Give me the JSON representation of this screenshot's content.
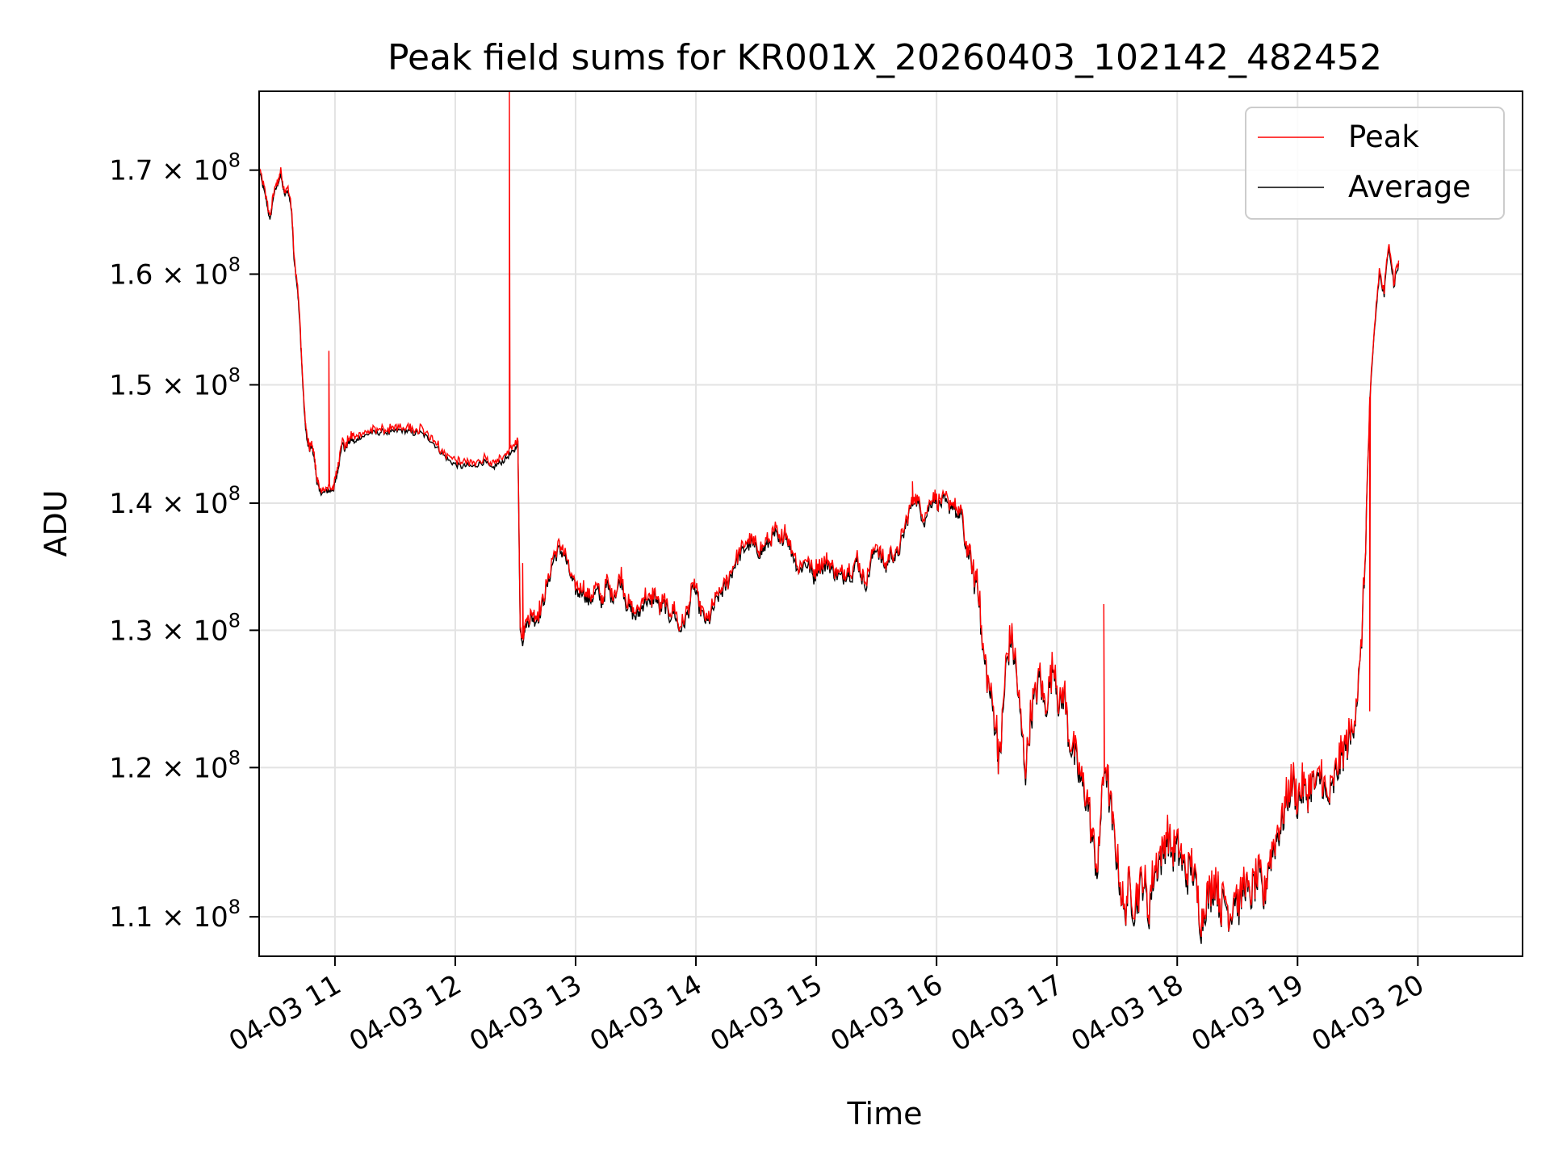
{
  "chart_data": {
    "type": "line",
    "title": "Peak field sums for KR001X_20260403_102142_482452",
    "xlabel": "Time",
    "ylabel": "ADU",
    "x_range_hours": [
      10.37,
      20.87
    ],
    "y_range": [
      107500000,
      178000000
    ],
    "y_scale": "log",
    "grid": true,
    "legend_position": "upper right",
    "x_ticks": [
      {
        "hour": 11,
        "label": "04-03 11"
      },
      {
        "hour": 12,
        "label": "04-03 12"
      },
      {
        "hour": 13,
        "label": "04-03 13"
      },
      {
        "hour": 14,
        "label": "04-03 14"
      },
      {
        "hour": 15,
        "label": "04-03 15"
      },
      {
        "hour": 16,
        "label": "04-03 16"
      },
      {
        "hour": 17,
        "label": "04-03 17"
      },
      {
        "hour": 18,
        "label": "04-03 18"
      },
      {
        "hour": 19,
        "label": "04-03 19"
      },
      {
        "hour": 20,
        "label": "04-03 20"
      }
    ],
    "y_ticks": [
      {
        "value": 110000000,
        "mantissa": "1.1"
      },
      {
        "value": 120000000,
        "mantissa": "1.2"
      },
      {
        "value": 130000000,
        "mantissa": "1.3"
      },
      {
        "value": 140000000,
        "mantissa": "1.4"
      },
      {
        "value": 150000000,
        "mantissa": "1.5"
      },
      {
        "value": 160000000,
        "mantissa": "1.6"
      },
      {
        "value": 170000000,
        "mantissa": "1.7"
      }
    ],
    "y_tick_suffix": "× 10",
    "y_tick_exponent": "8",
    "series": [
      {
        "name": "Average",
        "color": "#000000",
        "points": [
          [
            10.37,
            170.0
          ],
          [
            10.4,
            168.5
          ],
          [
            10.43,
            167.0
          ],
          [
            10.46,
            165.0
          ],
          [
            10.49,
            167.5
          ],
          [
            10.52,
            168.5
          ],
          [
            10.55,
            169.5
          ],
          [
            10.58,
            167.5
          ],
          [
            10.61,
            168.0
          ],
          [
            10.64,
            166.0
          ],
          [
            10.66,
            161.5
          ],
          [
            10.69,
            158.5
          ],
          [
            10.71,
            155.0
          ],
          [
            10.73,
            150.5
          ],
          [
            10.75,
            147.0
          ],
          [
            10.77,
            145.0
          ],
          [
            10.79,
            144.4
          ],
          [
            10.81,
            144.7
          ],
          [
            10.83,
            143.5
          ],
          [
            10.85,
            141.8
          ],
          [
            10.87,
            141.0
          ],
          [
            10.9,
            140.8
          ],
          [
            10.93,
            141.0
          ],
          [
            10.96,
            141.0
          ],
          [
            10.99,
            141.2
          ],
          [
            11.01,
            142.0
          ],
          [
            11.03,
            143.0
          ],
          [
            11.06,
            145.2
          ],
          [
            11.08,
            144.4
          ],
          [
            11.11,
            145.0
          ],
          [
            11.14,
            145.3
          ],
          [
            11.17,
            145.0
          ],
          [
            11.2,
            145.5
          ],
          [
            11.25,
            145.6
          ],
          [
            11.3,
            145.9
          ],
          [
            11.35,
            145.8
          ],
          [
            11.4,
            146.0
          ],
          [
            11.45,
            145.8
          ],
          [
            11.5,
            146.0
          ],
          [
            11.55,
            146.1
          ],
          [
            11.6,
            146.0
          ],
          [
            11.65,
            145.8
          ],
          [
            11.7,
            145.9
          ],
          [
            11.75,
            145.6
          ],
          [
            11.8,
            145.2
          ],
          [
            11.85,
            144.6
          ],
          [
            11.9,
            144.0
          ],
          [
            11.95,
            143.5
          ],
          [
            12.0,
            143.2
          ],
          [
            12.05,
            143.0
          ],
          [
            12.1,
            143.1
          ],
          [
            12.15,
            143.0
          ],
          [
            12.2,
            143.3
          ],
          [
            12.25,
            143.4
          ],
          [
            12.3,
            142.8
          ],
          [
            12.35,
            143.2
          ],
          [
            12.4,
            143.5
          ],
          [
            12.45,
            144.0
          ],
          [
            12.49,
            144.3
          ],
          [
            12.52,
            145.2
          ],
          [
            12.54,
            130.0
          ],
          [
            12.56,
            129.0
          ],
          [
            12.58,
            130.2
          ],
          [
            12.61,
            130.8
          ],
          [
            12.64,
            131.0
          ],
          [
            12.67,
            130.8
          ],
          [
            12.7,
            131.2
          ],
          [
            12.74,
            132.5
          ],
          [
            12.78,
            134.0
          ],
          [
            12.82,
            135.6
          ],
          [
            12.86,
            136.2
          ],
          [
            12.9,
            136.0
          ],
          [
            12.94,
            134.8
          ],
          [
            12.98,
            133.5
          ],
          [
            13.02,
            132.8
          ],
          [
            13.06,
            133.2
          ],
          [
            13.1,
            132.2
          ],
          [
            13.14,
            132.5
          ],
          [
            13.18,
            133.0
          ],
          [
            13.22,
            132.0
          ],
          [
            13.26,
            133.5
          ],
          [
            13.3,
            132.5
          ],
          [
            13.34,
            133.0
          ],
          [
            13.38,
            134.0
          ],
          [
            13.42,
            132.0
          ],
          [
            13.46,
            131.5
          ],
          [
            13.5,
            131.0
          ],
          [
            13.54,
            131.5
          ],
          [
            13.58,
            132.5
          ],
          [
            13.62,
            131.8
          ],
          [
            13.66,
            132.8
          ],
          [
            13.7,
            131.5
          ],
          [
            13.74,
            132.0
          ],
          [
            13.78,
            131.0
          ],
          [
            13.82,
            131.5
          ],
          [
            13.86,
            130.0
          ],
          [
            13.9,
            130.5
          ],
          [
            13.94,
            131.5
          ],
          [
            13.98,
            133.5
          ],
          [
            14.02,
            132.0
          ],
          [
            14.06,
            131.0
          ],
          [
            14.1,
            130.5
          ],
          [
            14.14,
            131.5
          ],
          [
            14.18,
            132.5
          ],
          [
            14.22,
            133.0
          ],
          [
            14.26,
            133.5
          ],
          [
            14.3,
            134.5
          ],
          [
            14.34,
            135.5
          ],
          [
            14.38,
            136.0
          ],
          [
            14.42,
            136.5
          ],
          [
            14.46,
            136.8
          ],
          [
            14.5,
            136.2
          ],
          [
            14.54,
            136.0
          ],
          [
            14.58,
            136.5
          ],
          [
            14.62,
            137.0
          ],
          [
            14.66,
            137.5
          ],
          [
            14.7,
            136.5
          ],
          [
            14.74,
            137.8
          ],
          [
            14.78,
            136.5
          ],
          [
            14.82,
            135.5
          ],
          [
            14.86,
            134.5
          ],
          [
            14.9,
            135.2
          ],
          [
            14.94,
            135.0
          ],
          [
            14.98,
            134.0
          ],
          [
            15.02,
            135.0
          ],
          [
            15.06,
            134.8
          ],
          [
            15.1,
            135.2
          ],
          [
            15.14,
            134.5
          ],
          [
            15.18,
            134.2
          ],
          [
            15.22,
            134.0
          ],
          [
            15.26,
            134.5
          ],
          [
            15.3,
            134.2
          ],
          [
            15.34,
            135.5
          ],
          [
            15.38,
            134.0
          ],
          [
            15.42,
            133.5
          ],
          [
            15.46,
            135.5
          ],
          [
            15.5,
            136.5
          ],
          [
            15.54,
            135.5
          ],
          [
            15.58,
            134.8
          ],
          [
            15.62,
            136.0
          ],
          [
            15.66,
            135.5
          ],
          [
            15.7,
            136.5
          ],
          [
            15.74,
            138.0
          ],
          [
            15.78,
            139.5
          ],
          [
            15.82,
            140.5
          ],
          [
            15.86,
            139.5
          ],
          [
            15.9,
            138.5
          ],
          [
            15.94,
            139.8
          ],
          [
            15.98,
            140.5
          ],
          [
            16.02,
            139.8
          ],
          [
            16.06,
            140.2
          ],
          [
            16.1,
            139.6
          ],
          [
            16.14,
            140.0
          ],
          [
            16.18,
            138.5
          ],
          [
            16.2,
            139.5
          ],
          [
            16.24,
            136.5
          ],
          [
            16.28,
            135.5
          ],
          [
            16.32,
            133.5
          ],
          [
            16.34,
            134.5
          ],
          [
            16.38,
            128.5
          ],
          [
            16.42,
            126.5
          ],
          [
            16.46,
            124.5
          ],
          [
            16.5,
            122.5
          ],
          [
            16.52,
            120.0
          ],
          [
            16.55,
            123.5
          ],
          [
            16.58,
            127.5
          ],
          [
            16.62,
            129.5
          ],
          [
            16.66,
            127.0
          ],
          [
            16.7,
            123.0
          ],
          [
            16.74,
            119.8
          ],
          [
            16.78,
            123.5
          ],
          [
            16.82,
            125.0
          ],
          [
            16.86,
            126.5
          ],
          [
            16.9,
            124.0
          ],
          [
            16.94,
            126.0
          ],
          [
            16.98,
            127.5
          ],
          [
            17.02,
            124.0
          ],
          [
            17.06,
            125.5
          ],
          [
            17.1,
            122.0
          ],
          [
            17.14,
            121.0
          ],
          [
            17.18,
            119.5
          ],
          [
            17.22,
            118.5
          ],
          [
            17.26,
            117.5
          ],
          [
            17.3,
            114.5
          ],
          [
            17.34,
            113.0
          ],
          [
            17.36,
            116.0
          ],
          [
            17.4,
            120.5
          ],
          [
            17.44,
            117.5
          ],
          [
            17.48,
            115.0
          ],
          [
            17.52,
            112.5
          ],
          [
            17.56,
            110.0
          ],
          [
            17.6,
            112.0
          ],
          [
            17.64,
            110.5
          ],
          [
            17.68,
            111.5
          ],
          [
            17.72,
            112.5
          ],
          [
            17.76,
            110.0
          ],
          [
            17.8,
            112.5
          ],
          [
            17.84,
            113.5
          ],
          [
            17.88,
            114.0
          ],
          [
            17.92,
            115.5
          ],
          [
            17.96,
            114.0
          ],
          [
            18.0,
            114.5
          ],
          [
            18.04,
            113.5
          ],
          [
            18.08,
            112.5
          ],
          [
            18.12,
            113.5
          ],
          [
            18.16,
            111.5
          ],
          [
            18.2,
            109.5
          ],
          [
            18.24,
            111.0
          ],
          [
            18.28,
            111.5
          ],
          [
            18.32,
            112.5
          ],
          [
            18.36,
            110.5
          ],
          [
            18.4,
            111.0
          ],
          [
            18.44,
            110.0
          ],
          [
            18.48,
            111.5
          ],
          [
            18.52,
            110.5
          ],
          [
            18.56,
            112.5
          ],
          [
            18.6,
            111.0
          ],
          [
            18.64,
            112.0
          ],
          [
            18.68,
            112.5
          ],
          [
            18.72,
            111.0
          ],
          [
            18.76,
            113.5
          ],
          [
            18.8,
            114.5
          ],
          [
            18.84,
            115.5
          ],
          [
            18.88,
            116.5
          ],
          [
            18.92,
            118.0
          ],
          [
            18.96,
            119.0
          ],
          [
            19.0,
            117.5
          ],
          [
            19.04,
            118.5
          ],
          [
            19.08,
            118.0
          ],
          [
            19.12,
            119.0
          ],
          [
            19.16,
            118.5
          ],
          [
            19.2,
            119.5
          ],
          [
            19.24,
            117.5
          ],
          [
            19.28,
            118.0
          ],
          [
            19.32,
            119.5
          ],
          [
            19.36,
            120.5
          ],
          [
            19.4,
            121.5
          ],
          [
            19.44,
            122.0
          ],
          [
            19.48,
            124.0
          ],
          [
            19.52,
            127.0
          ],
          [
            19.56,
            135.0
          ],
          [
            19.6,
            148.0
          ],
          [
            19.64,
            155.0
          ],
          [
            19.68,
            160.0
          ],
          [
            19.72,
            158.0
          ],
          [
            19.76,
            163.0
          ],
          [
            19.8,
            159.0
          ],
          [
            19.84,
            161.0
          ]
        ]
      },
      {
        "name": "Peak",
        "color": "#ff0000",
        "spikes": [
          [
            10.95,
            153.0
          ],
          [
            12.45,
            178.0
          ],
          [
            12.56,
            135.2
          ],
          [
            15.8,
            141.8
          ],
          [
            17.39,
            132.0
          ],
          [
            19.6,
            124.0
          ]
        ]
      }
    ]
  }
}
